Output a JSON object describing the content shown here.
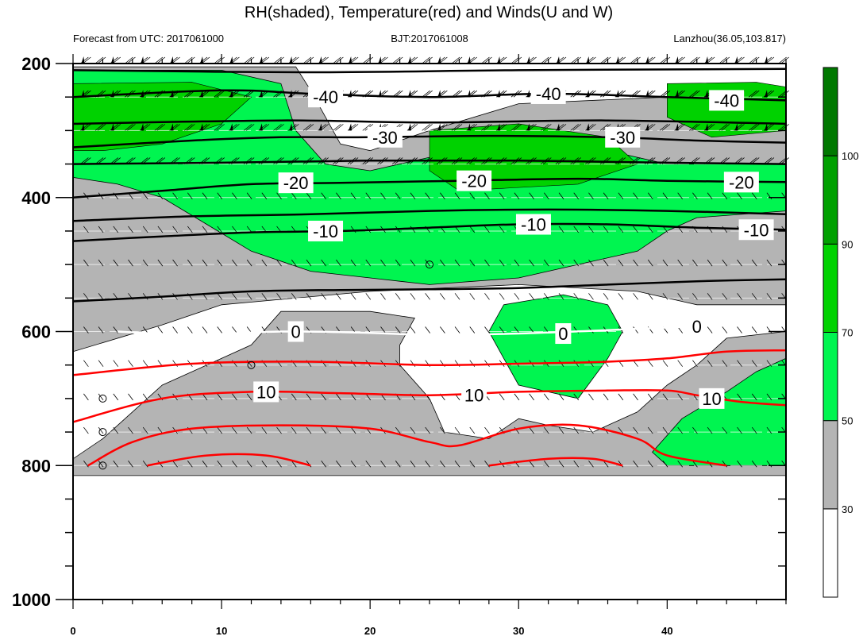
{
  "chart_data": {
    "type": "heatmap",
    "title": "RH(shaded), Temperature(red) and Winds(U and W)",
    "subtitle_left": "Forecast from UTC: 2017061000",
    "subtitle_center": "BJT:2017061008",
    "subtitle_right": "Lanzhou(36.05,103.817)",
    "x_ticks": [
      "0",
      "10",
      "20",
      "30",
      "40"
    ],
    "x_tick_values": [
      0,
      10,
      20,
      30,
      40
    ],
    "xlim": [
      0,
      48
    ],
    "y_ticks": [
      "200",
      "400",
      "600",
      "800",
      "1000"
    ],
    "y_tick_values": [
      200,
      400,
      600,
      800,
      1000
    ],
    "ylim": [
      1000,
      200
    ],
    "colorbar": {
      "labels": [
        "30",
        "50",
        "70",
        "90",
        "100"
      ],
      "levels": [
        30,
        50,
        70,
        90,
        100
      ],
      "colors": [
        "#ffffff",
        "#b4b4b4",
        "#00f550",
        "#00d200",
        "#00a000",
        "#007800"
      ]
    },
    "rh_fields": {
      "gray": [
        [
          0,
          205
        ],
        [
          15,
          205
        ],
        [
          16,
          240
        ],
        [
          18,
          320
        ],
        [
          20,
          330
        ],
        [
          24,
          300
        ],
        [
          30,
          260
        ],
        [
          40,
          250
        ],
        [
          48,
          260
        ],
        [
          48,
          560
        ],
        [
          42,
          560
        ],
        [
          38,
          540
        ],
        [
          30,
          530
        ],
        [
          20,
          540
        ],
        [
          10,
          560
        ],
        [
          6,
          590
        ],
        [
          0,
          630
        ],
        [
          0,
          815
        ],
        [
          48,
          815
        ],
        [
          48,
          600
        ],
        [
          44,
          610
        ],
        [
          42,
          650
        ],
        [
          40,
          680
        ],
        [
          38,
          720
        ],
        [
          35,
          750
        ],
        [
          32,
          740
        ],
        [
          30,
          730
        ],
        [
          28,
          760
        ],
        [
          25,
          750
        ],
        [
          24,
          700
        ],
        [
          22,
          650
        ],
        [
          22,
          620
        ],
        [
          23,
          580
        ],
        [
          20,
          570
        ],
        [
          14,
          570
        ],
        [
          12,
          620
        ],
        [
          9,
          650
        ],
        [
          6,
          680
        ],
        [
          4,
          720
        ],
        [
          2,
          760
        ],
        [
          0,
          790
        ]
      ],
      "green": [
        [
          0,
          210
        ],
        [
          10,
          210
        ],
        [
          14,
          230
        ],
        [
          15,
          300
        ],
        [
          17,
          350
        ],
        [
          20,
          360
        ],
        [
          24,
          340
        ],
        [
          30,
          320
        ],
        [
          36,
          330
        ],
        [
          40,
          350
        ],
        [
          48,
          350
        ],
        [
          48,
          420
        ],
        [
          42,
          430
        ],
        [
          40,
          450
        ],
        [
          38,
          480
        ],
        [
          34,
          500
        ],
        [
          30,
          520
        ],
        [
          24,
          530
        ],
        [
          20,
          520
        ],
        [
          16,
          510
        ],
        [
          12,
          480
        ],
        [
          9,
          440
        ],
        [
          6,
          400
        ],
        [
          3,
          380
        ],
        [
          0,
          370
        ]
      ],
      "green_lower_mid": [
        [
          29,
          560
        ],
        [
          33,
          545
        ],
        [
          36,
          560
        ],
        [
          37,
          600
        ],
        [
          36,
          640
        ],
        [
          34,
          700
        ],
        [
          30,
          680
        ],
        [
          29,
          640
        ],
        [
          28,
          600
        ]
      ],
      "green_lower_right": [
        [
          48,
          640
        ],
        [
          46,
          660
        ],
        [
          44,
          690
        ],
        [
          41,
          730
        ],
        [
          39,
          780
        ],
        [
          40,
          800
        ],
        [
          48,
          800
        ]
      ]
    },
    "temperature_contours": [
      {
        "label": "-40",
        "color": "#000000",
        "points": [
          [
            0,
            250
          ],
          [
            10,
            240
          ],
          [
            16,
            245
          ],
          [
            24,
            250
          ],
          [
            32,
            245
          ],
          [
            40,
            250
          ],
          [
            48,
            255
          ]
        ]
      },
      {
        "label": "-30",
        "color": "#000000",
        "points": [
          [
            0,
            325
          ],
          [
            8,
            315
          ],
          [
            14,
            310
          ],
          [
            20,
            310
          ],
          [
            28,
            308
          ],
          [
            36,
            310
          ],
          [
            42,
            315
          ],
          [
            48,
            318
          ]
        ]
      },
      {
        "label": "-20",
        "color": "#000000",
        "points": [
          [
            0,
            400
          ],
          [
            6,
            390
          ],
          [
            12,
            380
          ],
          [
            18,
            378
          ],
          [
            26,
            375
          ],
          [
            34,
            372
          ],
          [
            40,
            375
          ],
          [
            48,
            377
          ]
        ]
      },
      {
        "label": "-10",
        "color": "#000000",
        "points": [
          [
            0,
            465
          ],
          [
            6,
            458
          ],
          [
            12,
            452
          ],
          [
            18,
            450
          ],
          [
            24,
            445
          ],
          [
            30,
            440
          ],
          [
            36,
            440
          ],
          [
            42,
            445
          ],
          [
            48,
            448
          ]
        ]
      },
      {
        "label": "0",
        "color": "#ffffff",
        "points": [
          [
            3,
            600
          ],
          [
            8,
            605
          ],
          [
            14,
            600
          ],
          [
            20,
            602
          ],
          [
            24,
            605
          ],
          [
            30,
            603
          ],
          [
            36,
            598
          ],
          [
            42,
            592
          ],
          [
            48,
            585
          ]
        ]
      },
      {
        "label": "10",
        "color": "#ff0000",
        "points": [
          [
            0,
            735
          ],
          [
            6,
            700
          ],
          [
            12,
            690
          ],
          [
            18,
            692
          ],
          [
            24,
            695
          ],
          [
            30,
            690
          ],
          [
            36,
            688
          ],
          [
            40,
            688
          ],
          [
            42,
            695
          ],
          [
            45,
            705
          ],
          [
            48,
            710
          ]
        ]
      }
    ],
    "extra_red_lines": [
      {
        "points": [
          [
            0,
            665
          ],
          [
            8,
            648
          ],
          [
            16,
            645
          ],
          [
            24,
            650
          ],
          [
            30,
            648
          ],
          [
            36,
            645
          ],
          [
            40,
            640
          ],
          [
            44,
            630
          ],
          [
            48,
            628
          ]
        ]
      },
      {
        "points": [
          [
            1,
            800
          ],
          [
            4,
            765
          ],
          [
            8,
            745
          ],
          [
            14,
            740
          ],
          [
            20,
            745
          ],
          [
            24,
            765
          ],
          [
            26,
            770
          ],
          [
            30,
            745
          ],
          [
            34,
            740
          ],
          [
            38,
            760
          ],
          [
            40,
            785
          ],
          [
            44,
            800
          ]
        ]
      },
      {
        "points": [
          [
            5,
            800
          ],
          [
            9,
            785
          ],
          [
            13,
            785
          ],
          [
            16,
            800
          ]
        ]
      },
      {
        "points": [
          [
            28,
            800
          ],
          [
            32,
            790
          ],
          [
            35,
            790
          ],
          [
            37,
            800
          ]
        ]
      }
    ],
    "black_lines_extra": [
      {
        "points": [
          [
            0,
            210
          ],
          [
            16,
            213
          ],
          [
            30,
            210
          ],
          [
            48,
            208
          ]
        ]
      },
      {
        "points": [
          [
            0,
            290
          ],
          [
            14,
            285
          ],
          [
            24,
            288
          ],
          [
            36,
            285
          ],
          [
            48,
            290
          ]
        ]
      },
      {
        "points": [
          [
            0,
            350
          ],
          [
            10,
            348
          ],
          [
            20,
            345
          ],
          [
            30,
            345
          ],
          [
            40,
            348
          ],
          [
            48,
            350
          ]
        ]
      },
      {
        "points": [
          [
            0,
            435
          ],
          [
            8,
            428
          ],
          [
            16,
            425
          ],
          [
            24,
            420
          ],
          [
            32,
            418
          ],
          [
            40,
            420
          ],
          [
            48,
            425
          ]
        ]
      },
      {
        "points": [
          [
            0,
            555
          ],
          [
            6,
            548
          ],
          [
            12,
            540
          ],
          [
            18,
            538
          ],
          [
            24,
            537
          ],
          [
            30,
            535
          ],
          [
            36,
            530
          ],
          [
            42,
            525
          ],
          [
            48,
            522
          ]
        ]
      }
    ],
    "wind_levels": [
      200,
      250,
      300,
      350,
      400,
      450,
      500,
      550,
      600,
      650,
      700,
      750,
      800
    ],
    "calm_circles": [
      [
        2,
        700
      ],
      [
        2,
        750
      ],
      [
        2,
        800
      ],
      [
        12,
        650
      ],
      [
        24,
        500
      ]
    ]
  }
}
